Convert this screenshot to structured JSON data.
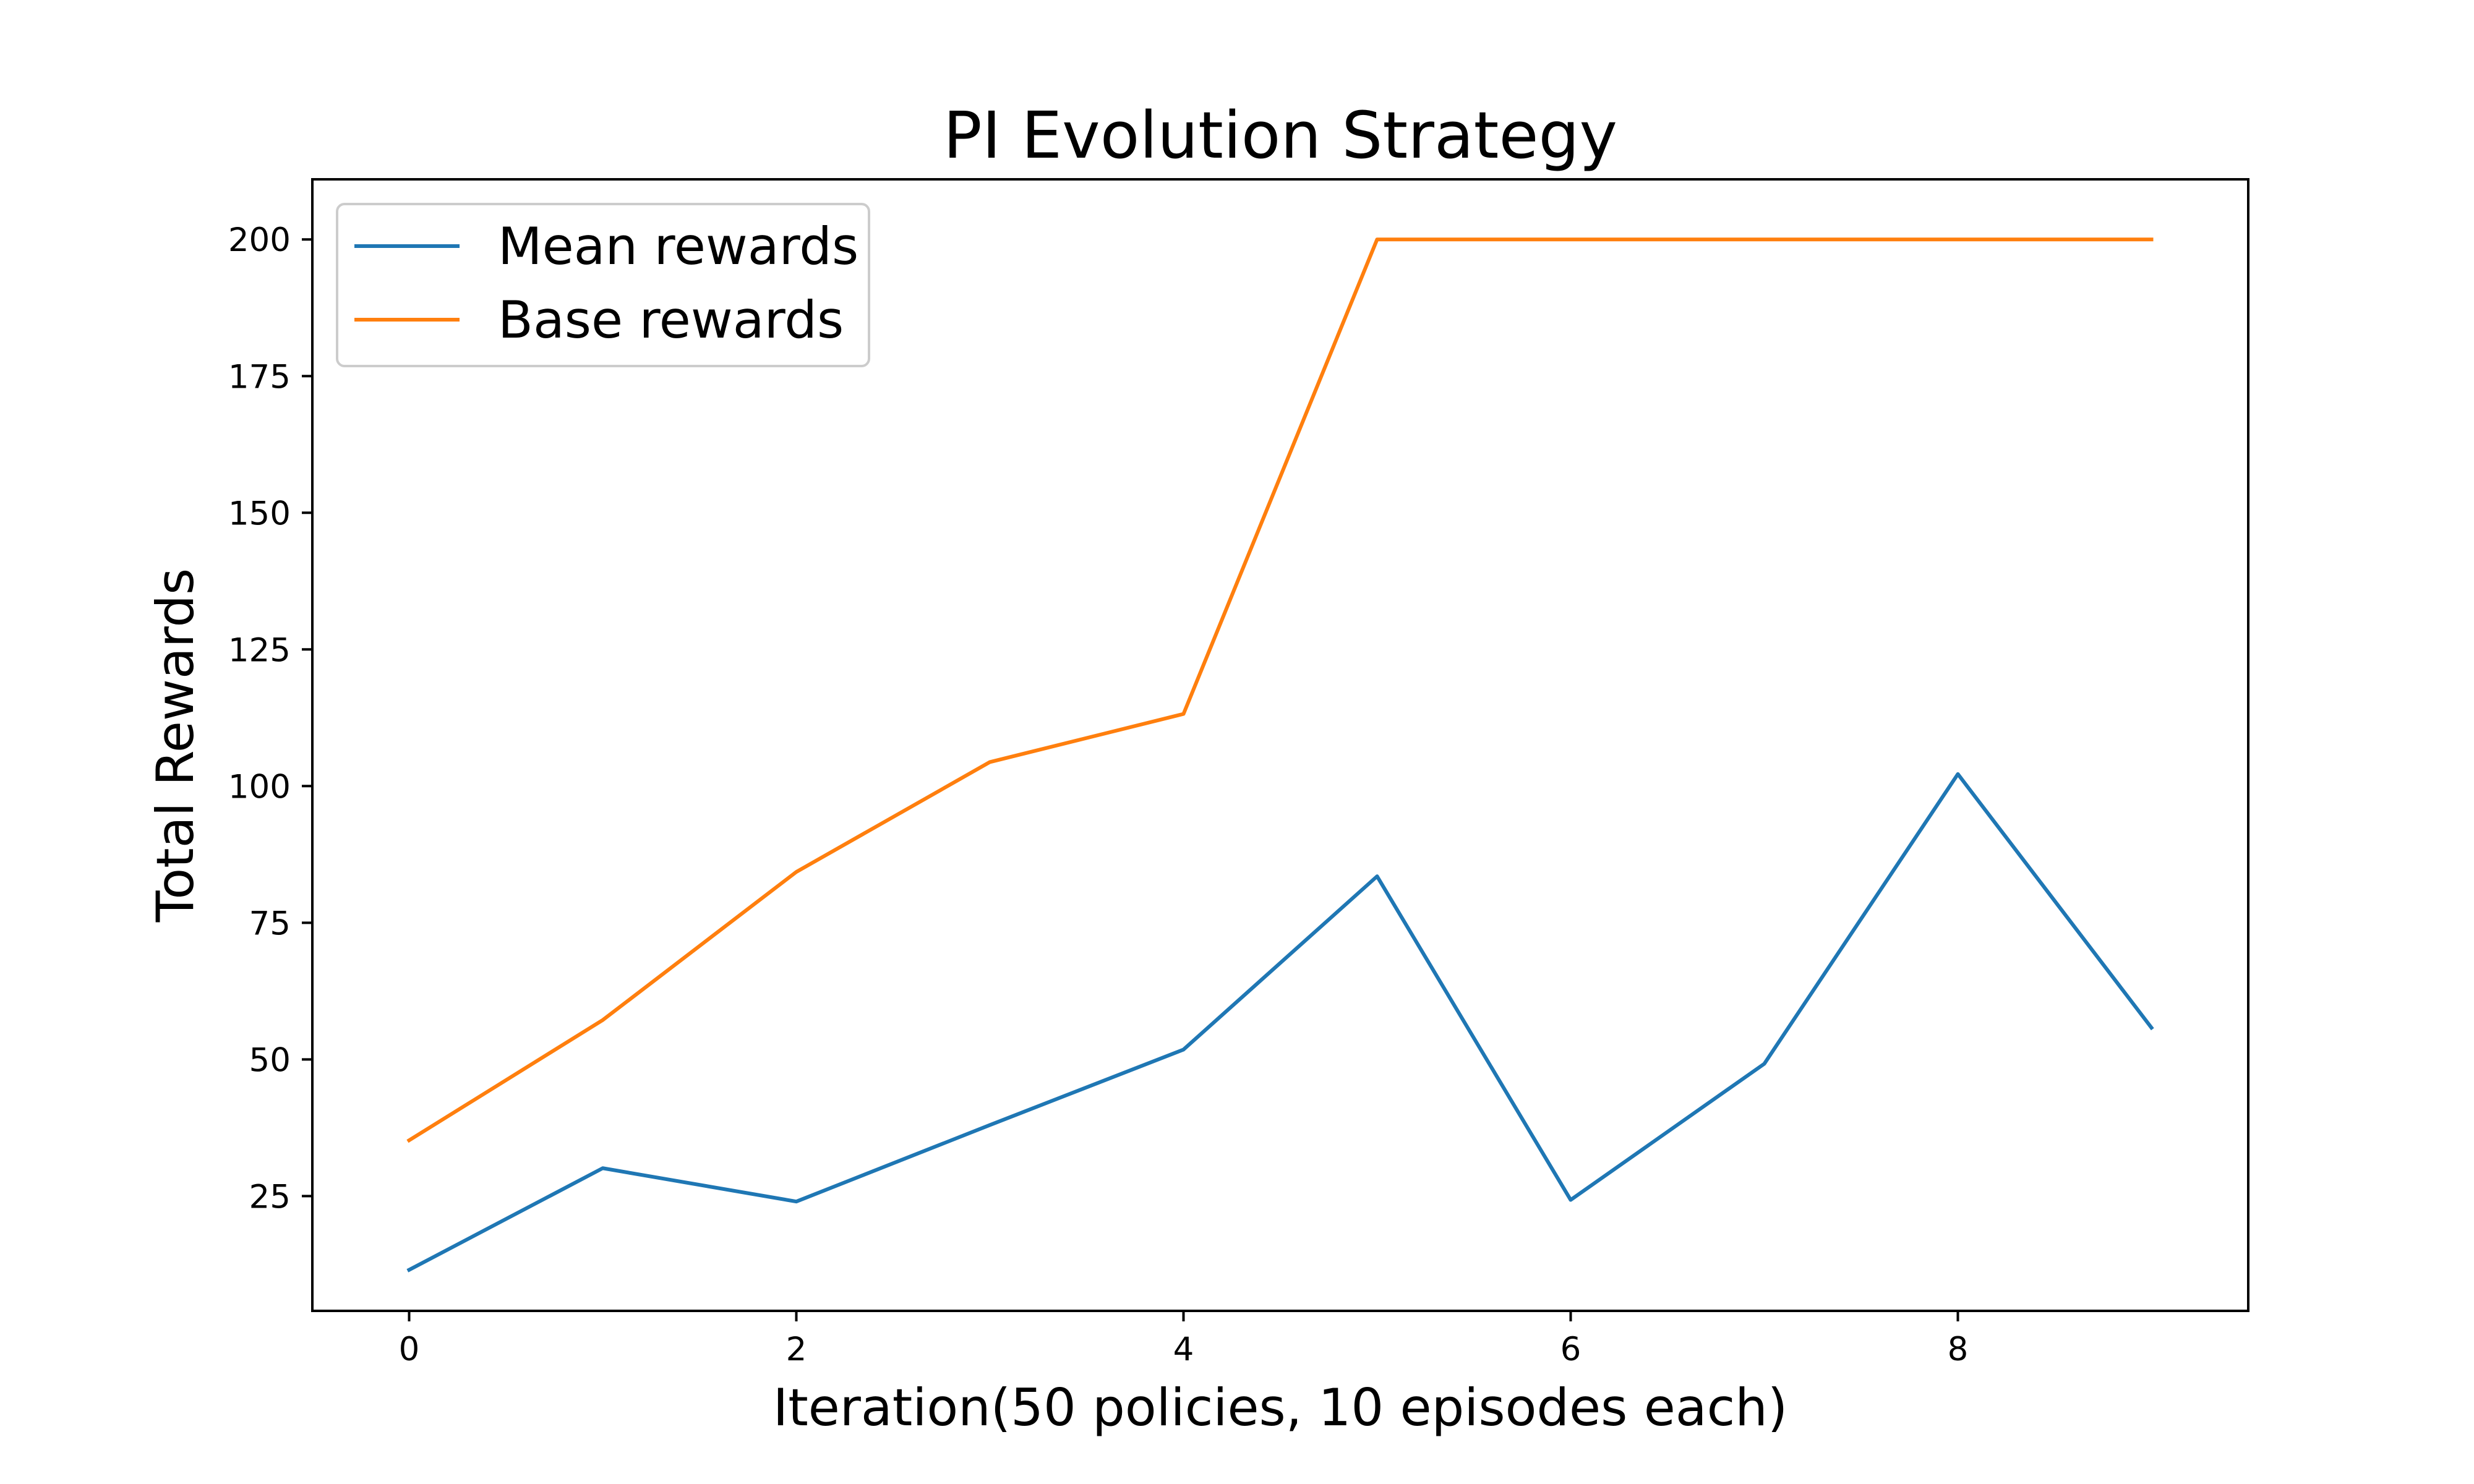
{
  "chart_data": {
    "type": "line",
    "title": "PI Evolution Strategy",
    "xlabel": "Iteration(50 policies, 10 episodes each)",
    "ylabel": "Total Rewards",
    "x": [
      0,
      1,
      2,
      3,
      4,
      5,
      6,
      7,
      8,
      9
    ],
    "xlim": [
      -0.5,
      9.5
    ],
    "ylim": [
      4,
      211
    ],
    "xticks": [
      0,
      2,
      4,
      6,
      8
    ],
    "yticks": [
      25,
      50,
      75,
      100,
      125,
      150,
      175,
      200
    ],
    "grid": false,
    "legend_position": "upper left",
    "series": [
      {
        "name": "Mean rewards",
        "color": "#1f77b4",
        "values": [
          11.5,
          30.1,
          24.0,
          38.0,
          51.8,
          83.5,
          24.3,
          49.2,
          102.2,
          55.8
        ]
      },
      {
        "name": "Base rewards",
        "color": "#ff7f0e",
        "values": [
          35.2,
          57.2,
          84.3,
          104.4,
          113.2,
          200.0,
          200.0,
          200.0,
          200.0,
          200.0
        ]
      }
    ]
  }
}
